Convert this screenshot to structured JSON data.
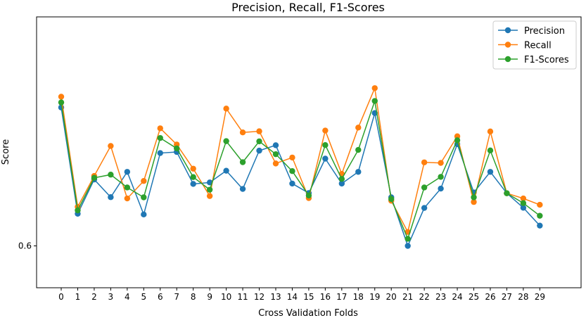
{
  "chart_data": {
    "type": "line",
    "title": "Precision, Recall, F1-Scores",
    "xlabel": "Cross Validation Folds",
    "ylabel": "Score",
    "x": [
      0,
      1,
      2,
      3,
      4,
      5,
      6,
      7,
      8,
      9,
      10,
      11,
      12,
      13,
      14,
      15,
      16,
      17,
      18,
      19,
      20,
      21,
      22,
      23,
      24,
      25,
      26,
      27,
      28,
      29
    ],
    "ytick_labels": [
      {
        "value": 0.6,
        "label": "0.6"
      }
    ],
    "ylim": [
      0.5775,
      0.7231
    ],
    "grid": false,
    "legend_position": "top-right",
    "series": [
      {
        "name": "Precision",
        "color": "#1f77b4",
        "values": [
          0.6744,
          0.6173,
          0.6357,
          0.6262,
          0.6398,
          0.6169,
          0.6499,
          0.6505,
          0.6333,
          0.6341,
          0.6404,
          0.6306,
          0.6512,
          0.6541,
          0.6335,
          0.6284,
          0.6469,
          0.6335,
          0.6398,
          0.6714,
          0.6261,
          0.6,
          0.6204,
          0.6308,
          0.6547,
          0.6287,
          0.6398,
          0.6283,
          0.6205,
          0.6109
        ]
      },
      {
        "name": "Recall",
        "color": "#ff7f0e",
        "values": [
          0.6802,
          0.621,
          0.6376,
          0.6537,
          0.6255,
          0.6349,
          0.6632,
          0.6545,
          0.6415,
          0.6268,
          0.6738,
          0.661,
          0.6616,
          0.6443,
          0.6475,
          0.6257,
          0.662,
          0.6387,
          0.6636,
          0.6848,
          0.6243,
          0.6075,
          0.6449,
          0.6446,
          0.6589,
          0.6236,
          0.6615,
          0.6283,
          0.6255,
          0.6221
        ]
      },
      {
        "name": "F1-Scores",
        "color": "#2ca02c",
        "values": [
          0.6771,
          0.6191,
          0.6366,
          0.6383,
          0.6314,
          0.6261,
          0.658,
          0.6524,
          0.637,
          0.6302,
          0.6563,
          0.645,
          0.6562,
          0.6493,
          0.6402,
          0.6271,
          0.6542,
          0.636,
          0.6516,
          0.6779,
          0.6252,
          0.6038,
          0.6314,
          0.6371,
          0.6568,
          0.6261,
          0.6513,
          0.6283,
          0.623,
          0.6162
        ]
      }
    ]
  }
}
